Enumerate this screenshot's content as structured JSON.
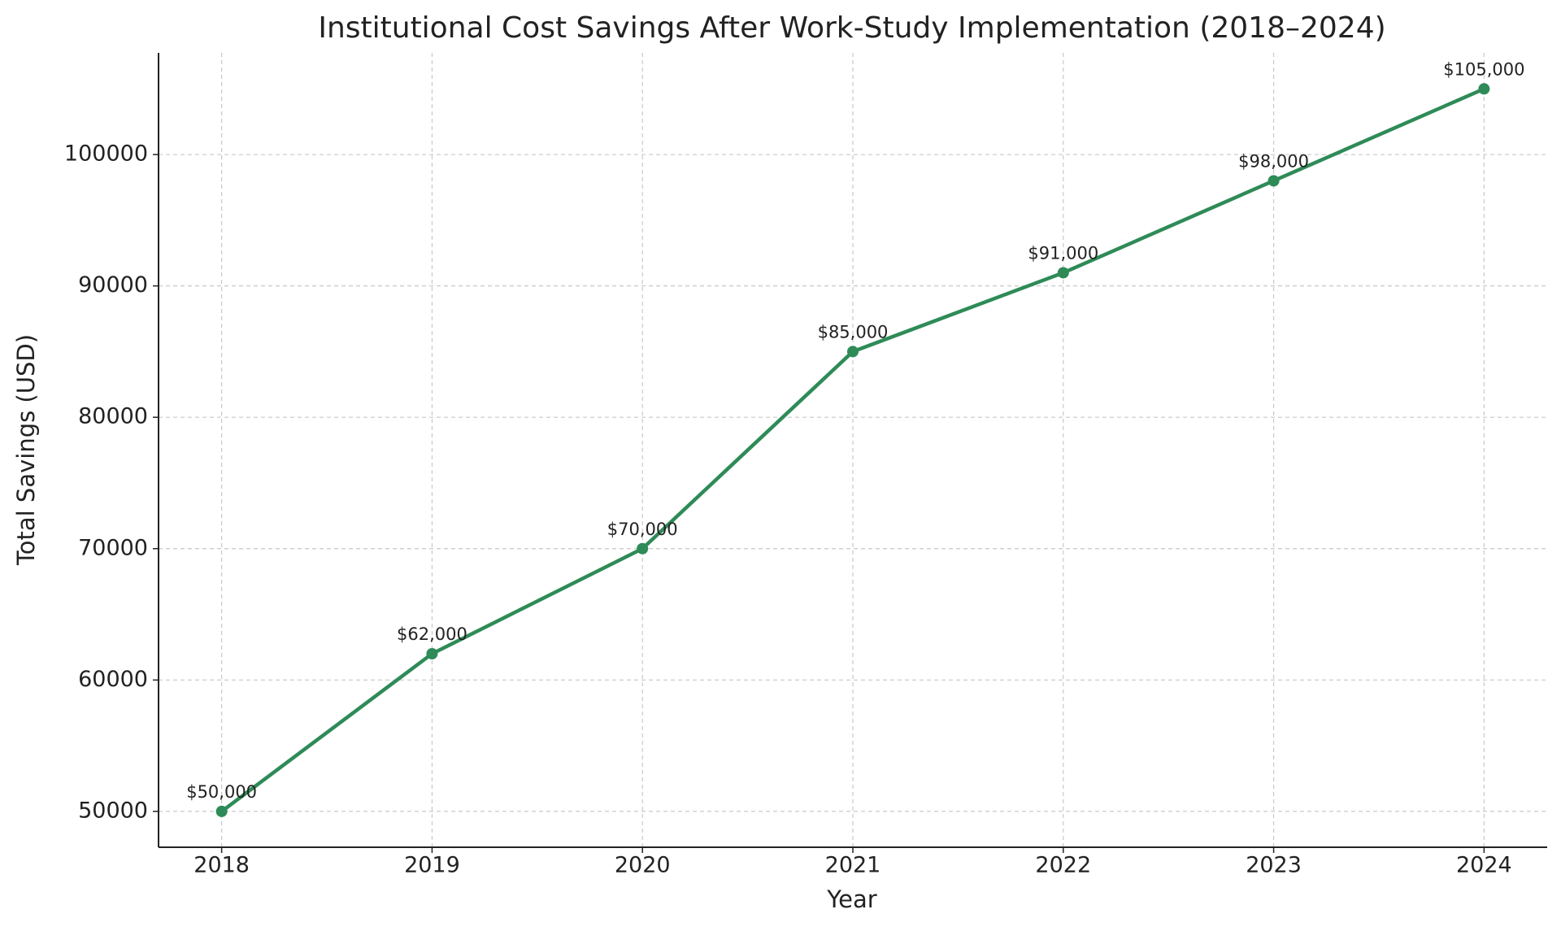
{
  "chart_data": {
    "type": "line",
    "title": "Institutional Cost Savings After Work-Study Implementation (2018–2024)",
    "x_label": "Year",
    "y_label": "Total Savings (USD)",
    "x": [
      2018,
      2019,
      2020,
      2021,
      2022,
      2023,
      2024
    ],
    "series": [
      {
        "name": "Total Savings",
        "color": "#2e8b57",
        "values": [
          50000,
          62000,
          70000,
          85000,
          91000,
          98000,
          105000
        ],
        "value_labels": [
          "$50,000",
          "$62,000",
          "$70,000",
          "$85,000",
          "$91,000",
          "$98,000",
          "$105,000"
        ]
      }
    ],
    "xlim": [
      2017.7,
      2024.3
    ],
    "xticks": [
      2018,
      2019,
      2020,
      2021,
      2022,
      2023,
      2024
    ],
    "ylim": [
      47270,
      107740
    ],
    "yticks": [
      50000,
      60000,
      70000,
      80000,
      90000,
      100000
    ],
    "grid": true
  }
}
